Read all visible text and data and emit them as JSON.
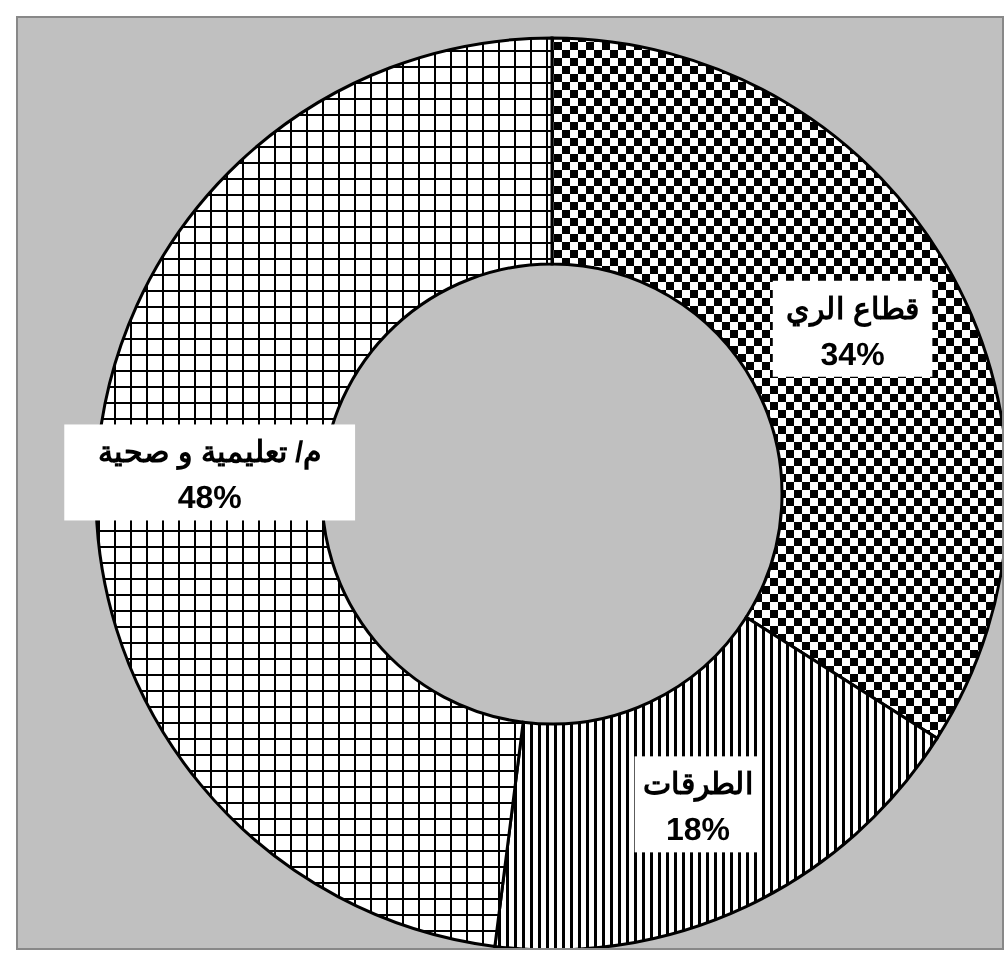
{
  "chart_data": {
    "type": "donut",
    "categories": [
      "قطاع الري",
      "الطرقات",
      "م/ تعليمية و صحية"
    ],
    "values": [
      34,
      18,
      48
    ],
    "colors": [
      "#000000",
      "#000000",
      "#000000"
    ],
    "value_labels": [
      "34%",
      "18%",
      "48%"
    ],
    "legend": false
  }
}
